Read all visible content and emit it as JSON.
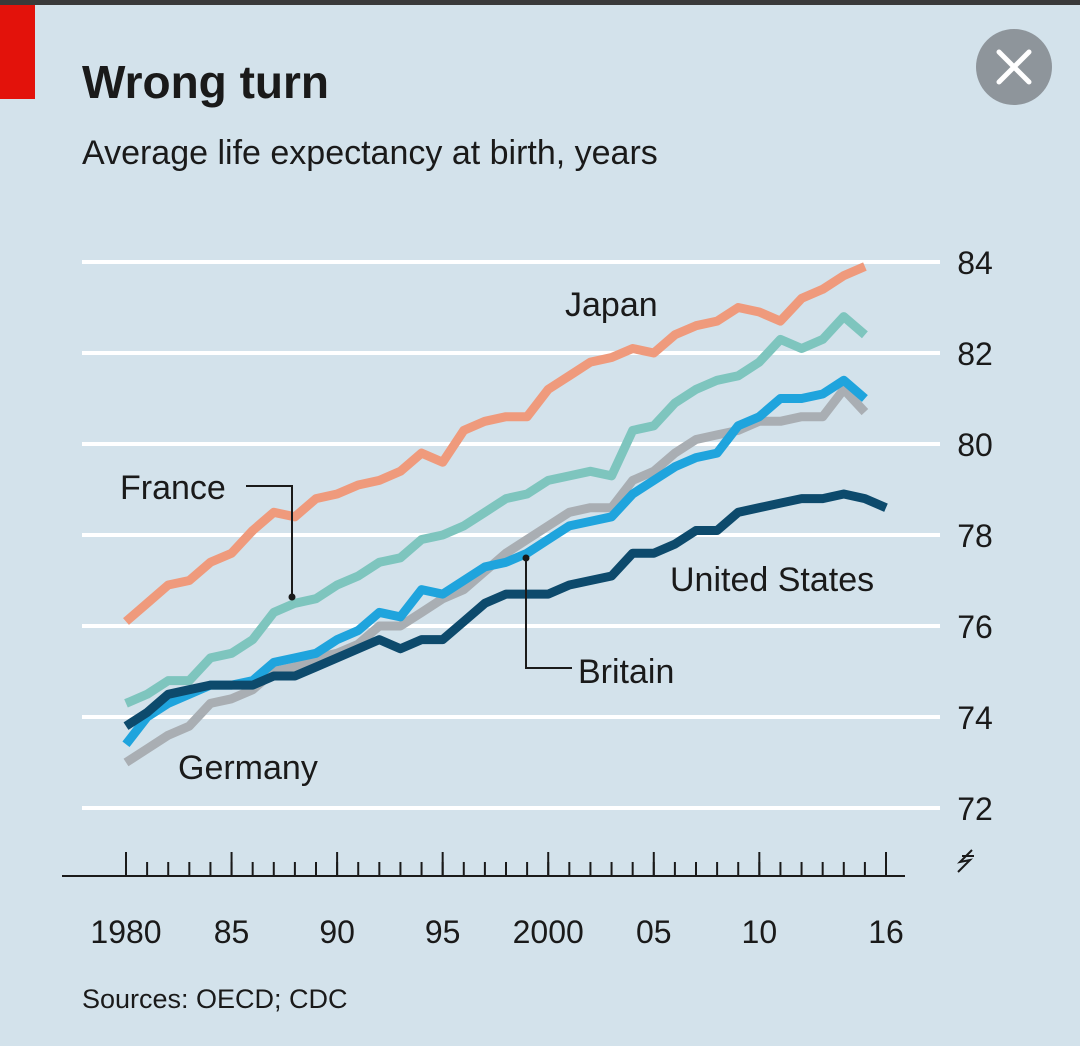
{
  "chart_data": {
    "type": "line",
    "title": "Wrong turn",
    "subtitle": "Average life expectancy at birth, years",
    "source": "Sources: OECD; CDC",
    "x": [
      1980,
      1981,
      1982,
      1983,
      1984,
      1985,
      1986,
      1987,
      1988,
      1989,
      1990,
      1991,
      1992,
      1993,
      1994,
      1995,
      1996,
      1997,
      1998,
      1999,
      2000,
      2001,
      2002,
      2003,
      2004,
      2005,
      2006,
      2007,
      2008,
      2009,
      2010,
      2011,
      2012,
      2013,
      2014,
      2015,
      2016
    ],
    "xlim": [
      1980,
      2016
    ],
    "xticks": [
      1980,
      {
        "value": 1985,
        "label": "85"
      },
      {
        "value": 1990,
        "label": "90"
      },
      {
        "value": 1995,
        "label": "95"
      },
      2000,
      {
        "value": 2005,
        "label": "05"
      },
      {
        "value": 2010,
        "label": "10"
      },
      {
        "value": 2016,
        "label": "16"
      }
    ],
    "ylim": [
      72,
      84
    ],
    "yticks": [
      72,
      74,
      76,
      78,
      80,
      82,
      84
    ],
    "grid": true,
    "series": [
      {
        "name": "Japan",
        "color": "#ef9a7c",
        "values": [
          76.1,
          76.5,
          76.9,
          77.0,
          77.4,
          77.6,
          78.1,
          78.5,
          78.4,
          78.8,
          78.9,
          79.1,
          79.2,
          79.4,
          79.8,
          79.6,
          80.3,
          80.5,
          80.6,
          80.6,
          81.2,
          81.5,
          81.8,
          81.9,
          82.1,
          82.0,
          82.4,
          82.6,
          82.7,
          83.0,
          82.9,
          82.7,
          83.2,
          83.4,
          83.7,
          83.9,
          null
        ]
      },
      {
        "name": "France",
        "color": "#7ec5be",
        "values": [
          74.3,
          74.5,
          74.8,
          74.8,
          75.3,
          75.4,
          75.7,
          76.3,
          76.5,
          76.6,
          76.9,
          77.1,
          77.4,
          77.5,
          77.9,
          78.0,
          78.2,
          78.5,
          78.8,
          78.9,
          79.2,
          79.3,
          79.4,
          79.3,
          80.3,
          80.4,
          80.9,
          81.2,
          81.4,
          81.5,
          81.8,
          82.3,
          82.1,
          82.3,
          82.8,
          82.4,
          null
        ]
      },
      {
        "name": "Germany",
        "color": "#a9aeb3",
        "values": [
          73.0,
          73.3,
          73.6,
          73.8,
          74.3,
          74.4,
          74.6,
          75.0,
          75.1,
          75.3,
          75.4,
          75.6,
          76.0,
          76.0,
          76.3,
          76.6,
          76.8,
          77.2,
          77.6,
          77.9,
          78.2,
          78.5,
          78.6,
          78.6,
          79.2,
          79.4,
          79.8,
          80.1,
          80.2,
          80.3,
          80.5,
          80.5,
          80.6,
          80.6,
          81.2,
          80.7,
          null
        ]
      },
      {
        "name": "Britain",
        "color": "#1fa4dd",
        "values": [
          73.4,
          74.0,
          74.3,
          74.5,
          74.7,
          74.7,
          74.8,
          75.2,
          75.3,
          75.4,
          75.7,
          75.9,
          76.3,
          76.2,
          76.8,
          76.7,
          77.0,
          77.3,
          77.4,
          77.6,
          77.9,
          78.2,
          78.3,
          78.4,
          78.9,
          79.2,
          79.5,
          79.7,
          79.8,
          80.4,
          80.6,
          81.0,
          81.0,
          81.1,
          81.4,
          81.0,
          null
        ]
      },
      {
        "name": "United States",
        "color": "#0d4a6c",
        "values": [
          73.8,
          74.1,
          74.5,
          74.6,
          74.7,
          74.7,
          74.7,
          74.9,
          74.9,
          75.1,
          75.3,
          75.5,
          75.7,
          75.5,
          75.7,
          75.7,
          76.1,
          76.5,
          76.7,
          76.7,
          76.7,
          76.9,
          77.0,
          77.1,
          77.6,
          77.6,
          77.8,
          78.1,
          78.1,
          78.5,
          78.6,
          78.7,
          78.8,
          78.8,
          78.9,
          78.8,
          78.6
        ]
      }
    ]
  }
}
